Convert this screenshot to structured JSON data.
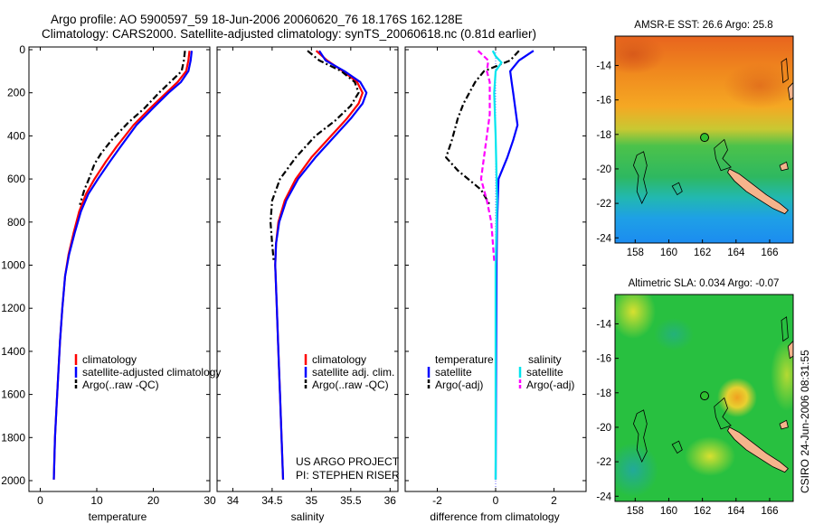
{
  "title": {
    "line1": "Argo profile: AO 5900597_59 18-Jun-2006 20060620_76 18.176S 162.128E",
    "line2": "Climatology: CARS2000. Satellite-adjusted climatology: synTS_20060618.nc (0.81d earlier)"
  },
  "colors": {
    "climatology": "#ff0000",
    "satellite": "#0000ff",
    "argo": "#000000",
    "sat_salinity": "#00e5ee",
    "argo_salinity": "#ff00ff"
  },
  "depth_axis": {
    "ticks": [
      "0",
      "200",
      "400",
      "600",
      "800",
      "1000",
      "1200",
      "1400",
      "1600",
      "1800",
      "2000"
    ],
    "ylim": [
      0,
      2050
    ],
    "reversed": true
  },
  "chart_data": [
    {
      "type": "line",
      "panel": "temperature",
      "xlabel": "temperature",
      "ylabel": "",
      "xlim": [
        -2,
        30
      ],
      "xticks": [
        "0",
        "10",
        "20",
        "30"
      ],
      "legend": [
        "climatology",
        "satellite-adjusted climatology",
        "Argo(..raw -QC)"
      ],
      "series": [
        {
          "name": "climatology",
          "style": "solid",
          "color": "#ff0000",
          "points": [
            [
              26.4,
              5
            ],
            [
              26.2,
              50
            ],
            [
              25.8,
              100
            ],
            [
              24.3,
              150
            ],
            [
              22.3,
              200
            ],
            [
              19.5,
              270
            ],
            [
              16.5,
              350
            ],
            [
              13.5,
              450
            ],
            [
              11.6,
              520
            ],
            [
              9.6,
              600
            ],
            [
              8.1,
              670
            ],
            [
              6.9,
              750
            ],
            [
              5.9,
              850
            ],
            [
              5.0,
              950
            ],
            [
              4.4,
              1050
            ],
            [
              3.9,
              1200
            ],
            [
              3.5,
              1350
            ],
            [
              3.2,
              1500
            ],
            [
              2.9,
              1650
            ],
            [
              2.6,
              1800
            ],
            [
              2.4,
              1995
            ]
          ]
        },
        {
          "name": "satellite-adjusted climatology",
          "style": "solid",
          "color": "#0000ff",
          "points": [
            [
              26.8,
              5
            ],
            [
              26.6,
              50
            ],
            [
              26.2,
              100
            ],
            [
              24.9,
              150
            ],
            [
              22.7,
              200
            ],
            [
              20.0,
              270
            ],
            [
              17.0,
              350
            ],
            [
              14.2,
              450
            ],
            [
              12.3,
              520
            ],
            [
              10.2,
              600
            ],
            [
              8.5,
              670
            ],
            [
              7.2,
              750
            ],
            [
              6.1,
              850
            ],
            [
              5.1,
              950
            ],
            [
              4.4,
              1050
            ],
            [
              3.9,
              1200
            ],
            [
              3.5,
              1350
            ],
            [
              3.2,
              1500
            ],
            [
              2.9,
              1650
            ],
            [
              2.6,
              1800
            ],
            [
              2.4,
              1995
            ]
          ]
        },
        {
          "name": "Argo(..raw -QC)",
          "style": "dashdot",
          "color": "#000000",
          "points": [
            [
              25.6,
              5
            ],
            [
              25.4,
              50
            ],
            [
              25.0,
              100
            ],
            [
              23.0,
              150
            ],
            [
              21.0,
              200
            ],
            [
              18.5,
              270
            ],
            [
              15.5,
              340
            ],
            [
              12.6,
              420
            ],
            [
              10.8,
              480
            ],
            [
              9.6,
              530
            ],
            [
              8.6,
              600
            ],
            [
              7.8,
              650
            ],
            [
              7.0,
              720
            ]
          ]
        }
      ]
    },
    {
      "type": "line",
      "panel": "salinity",
      "xlabel": "salinity",
      "ylabel": "",
      "xlim": [
        33.8,
        36.1
      ],
      "xticks": [
        "34",
        "34.5",
        "35",
        "35.5",
        "36"
      ],
      "legend": [
        "climatology",
        "satellite adj. clim.",
        "Argo(..raw -QC)"
      ],
      "series": [
        {
          "name": "climatology",
          "style": "solid",
          "color": "#ff0000",
          "points": [
            [
              35.06,
              5
            ],
            [
              35.2,
              50
            ],
            [
              35.4,
              100
            ],
            [
              35.58,
              150
            ],
            [
              35.65,
              200
            ],
            [
              35.6,
              250
            ],
            [
              35.45,
              320
            ],
            [
              35.25,
              400
            ],
            [
              35.0,
              500
            ],
            [
              34.8,
              600
            ],
            [
              34.66,
              700
            ],
            [
              34.58,
              800
            ],
            [
              34.55,
              900
            ],
            [
              34.54,
              1000
            ],
            [
              34.56,
              1200
            ],
            [
              34.58,
              1400
            ],
            [
              34.6,
              1600
            ],
            [
              34.62,
              1800
            ],
            [
              34.64,
              1995
            ]
          ]
        },
        {
          "name": "satellite adj. clim.",
          "style": "solid",
          "color": "#0000ff",
          "points": [
            [
              35.1,
              5
            ],
            [
              35.18,
              50
            ],
            [
              35.42,
              100
            ],
            [
              35.62,
              150
            ],
            [
              35.7,
              200
            ],
            [
              35.65,
              250
            ],
            [
              35.5,
              320
            ],
            [
              35.3,
              400
            ],
            [
              35.05,
              500
            ],
            [
              34.83,
              600
            ],
            [
              34.68,
              700
            ],
            [
              34.59,
              800
            ],
            [
              34.55,
              900
            ],
            [
              34.54,
              1000
            ],
            [
              34.56,
              1200
            ],
            [
              34.58,
              1400
            ],
            [
              34.6,
              1600
            ],
            [
              34.62,
              1800
            ],
            [
              34.64,
              1995
            ]
          ]
        },
        {
          "name": "Argo(..raw -QC)",
          "style": "dashdot",
          "color": "#000000",
          "points": [
            [
              34.95,
              5
            ],
            [
              35.1,
              50
            ],
            [
              35.38,
              100
            ],
            [
              35.55,
              150
            ],
            [
              35.6,
              200
            ],
            [
              35.5,
              260
            ],
            [
              35.3,
              330
            ],
            [
              35.05,
              400
            ],
            [
              34.8,
              500
            ],
            [
              34.6,
              600
            ],
            [
              34.5,
              700
            ],
            [
              34.48,
              800
            ],
            [
              34.5,
              900
            ],
            [
              34.52,
              980
            ]
          ]
        }
      ]
    },
    {
      "type": "line",
      "panel": "difference",
      "xlabel": "difference from climatology",
      "ylabel": "",
      "xlim": [
        -3.1,
        3.1
      ],
      "xticks": [
        "-2",
        "0",
        "2"
      ],
      "legend_temperature_title": "temperature",
      "legend_salinity_title": "salinity",
      "legend_temperature": [
        "satellite",
        "Argo(-adj)"
      ],
      "legend_salinity": [
        "satellite",
        "Argo(-adj)"
      ],
      "series": [
        {
          "name": "temperature satellite",
          "style": "solid",
          "color": "#0000ff",
          "points": [
            [
              1.3,
              5
            ],
            [
              0.8,
              50
            ],
            [
              0.5,
              100
            ],
            [
              0.55,
              150
            ],
            [
              0.6,
              200
            ],
            [
              0.7,
              300
            ],
            [
              0.75,
              350
            ],
            [
              0.6,
              420
            ],
            [
              0.4,
              500
            ],
            [
              0.1,
              600
            ],
            [
              0.05,
              800
            ],
            [
              0.03,
              1000
            ],
            [
              0.02,
              1400
            ],
            [
              0.0,
              1995
            ]
          ]
        },
        {
          "name": "temperature Argo(-adj)",
          "style": "dashdot",
          "color": "#000000",
          "points": [
            [
              0.8,
              5
            ],
            [
              0.5,
              50
            ],
            [
              -0.4,
              100
            ],
            [
              -0.7,
              150
            ],
            [
              -1.1,
              250
            ],
            [
              -1.3,
              320
            ],
            [
              -1.5,
              420
            ],
            [
              -1.7,
              500
            ],
            [
              -1.3,
              560
            ],
            [
              -0.5,
              650
            ],
            [
              -0.2,
              720
            ]
          ]
        },
        {
          "name": "salinity satellite",
          "style": "solid",
          "color": "#00e5ee",
          "points": [
            [
              -0.1,
              5
            ],
            [
              0.0,
              30
            ],
            [
              0.2,
              60
            ],
            [
              0.0,
              100
            ],
            [
              -0.05,
              200
            ],
            [
              0.0,
              400
            ],
            [
              0.05,
              700
            ],
            [
              0.0,
              1000
            ],
            [
              0.0,
              1995
            ]
          ]
        },
        {
          "name": "salinity Argo(-adj)",
          "style": "dashed",
          "color": "#ff00ff",
          "points": [
            [
              -0.6,
              5
            ],
            [
              -0.25,
              50
            ],
            [
              -0.3,
              100
            ],
            [
              -0.2,
              150
            ],
            [
              -0.2,
              300
            ],
            [
              -0.35,
              450
            ],
            [
              -0.5,
              600
            ],
            [
              -0.3,
              700
            ],
            [
              -0.15,
              800
            ],
            [
              -0.05,
              980
            ]
          ]
        }
      ]
    },
    {
      "type": "heatmap",
      "panel": "sst_map",
      "title": "AMSR-E SST: 26.6 Argo: 25.8",
      "xticks": [
        "158",
        "160",
        "162",
        "164",
        "166"
      ],
      "yticks": [
        "-14",
        "-16",
        "-18",
        "-20",
        "-22",
        "-24"
      ],
      "xlim": [
        156.8,
        167.4
      ],
      "ylim": [
        -24.3,
        -12.3
      ],
      "argo_position": [
        162.128,
        -18.176
      ]
    },
    {
      "type": "heatmap",
      "panel": "sla_map",
      "title": "Altimetric SLA: 0.034 Argo: -0.07",
      "xticks": [
        "158",
        "160",
        "162",
        "164",
        "166"
      ],
      "yticks": [
        "-14",
        "-16",
        "-18",
        "-20",
        "-22",
        "-24"
      ],
      "xlim": [
        156.8,
        167.4
      ],
      "ylim": [
        -24.3,
        -12.3
      ],
      "argo_position": [
        162.128,
        -18.176
      ]
    }
  ],
  "credits": {
    "project": "US ARGO PROJECT",
    "pi": "PI: STEPHEN RISER",
    "timestamp": "CSIRO 24-Jun-2006 08:31:55"
  }
}
